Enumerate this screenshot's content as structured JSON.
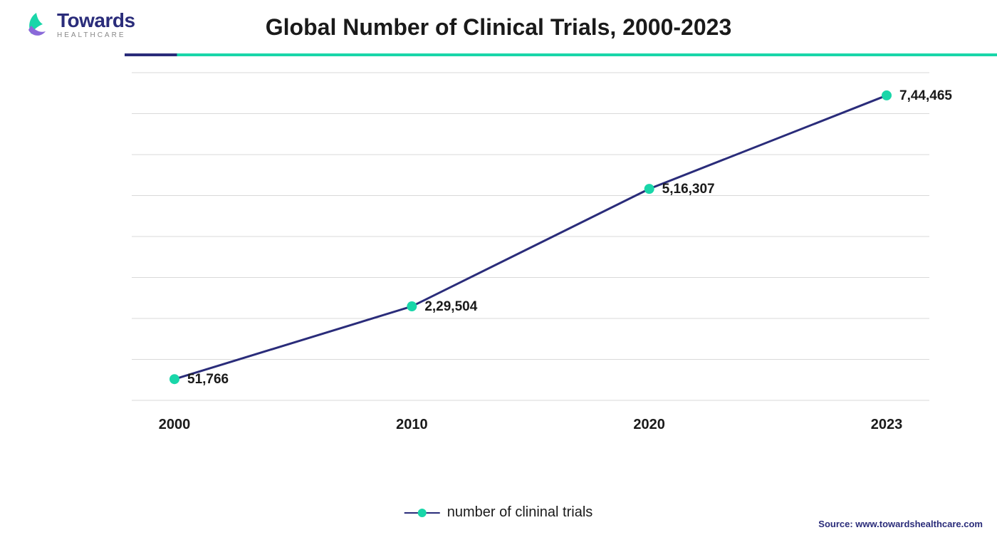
{
  "logo": {
    "main": "Towards",
    "sub": "HEALTHCARE",
    "iconColors": {
      "leaf": "#19d6a9",
      "swirl": "#8a6ad9"
    }
  },
  "title": "Global Number of Clinical Trials, 2000-2023",
  "rule": {
    "leftColor": "#2a2c7a",
    "rightColor": "#19d6a9",
    "splitPct": 6
  },
  "chart": {
    "type": "line",
    "categories": [
      "2000",
      "2010",
      "2020",
      "2023"
    ],
    "valuesNumeric": [
      51766,
      229504,
      516307,
      744465
    ],
    "valueLabels": [
      "51,766",
      "2,29,504",
      "5,16,307",
      "7,44,465"
    ],
    "ylim": [
      0,
      800000
    ],
    "ytick_step": 100000,
    "lineColor": "#2a2c7a",
    "lineWidth": 3,
    "markerColor": "#19d6a9",
    "markerRadius": 7,
    "gridColor": "#d9d9d9",
    "backgroundColor": "#ffffff",
    "axisFontSize": 20,
    "axisFontColor": "#1a1a1a",
    "dataLabelFontSize": 19,
    "dataLabelColor": "#1a1a1a",
    "title_fontsize": 32
  },
  "legend": {
    "label": "number of clininal trials"
  },
  "source": "Source: www.towardshealthcare.com"
}
